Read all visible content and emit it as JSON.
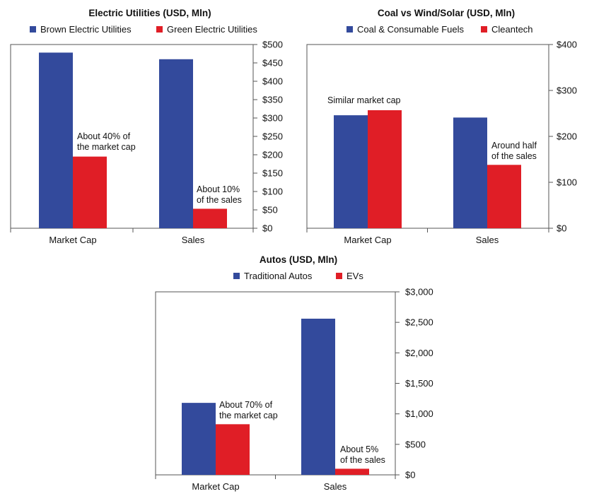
{
  "chart_data": [
    {
      "type": "bar",
      "title": "Electric Utilities (USD, Mln)",
      "categories": [
        "Market Cap",
        "Sales"
      ],
      "series": [
        {
          "name": "Brown Electric Utilities",
          "values": [
            478,
            460
          ],
          "color": "#334a9c"
        },
        {
          "name": "Green Electric Utilities",
          "values": [
            195,
            53
          ],
          "color": "#e01e26"
        }
      ],
      "ylim": [
        0,
        500
      ],
      "yticks": [
        "$0",
        "$50",
        "$100",
        "$150",
        "$200",
        "$250",
        "$300",
        "$350",
        "$400",
        "$450",
        "$500"
      ],
      "ytick_values": [
        0,
        50,
        100,
        150,
        200,
        250,
        300,
        350,
        400,
        450,
        500
      ],
      "annotations": [
        {
          "lines": [
            "About 40% of",
            "the market cap"
          ],
          "category": 0
        },
        {
          "lines": [
            "About 10%",
            "of the sales"
          ],
          "category": 1
        }
      ],
      "legend": "top"
    },
    {
      "type": "bar",
      "title": "Coal vs Wind/Solar (USD, Mln)",
      "categories": [
        "Market Cap",
        "Sales"
      ],
      "series": [
        {
          "name": "Coal & Consumable Fuels",
          "values": [
            246,
            241
          ],
          "color": "#334a9c"
        },
        {
          "name": "Cleantech",
          "values": [
            257,
            138
          ],
          "color": "#e01e26"
        }
      ],
      "ylim": [
        0,
        400
      ],
      "yticks": [
        "$0",
        "$100",
        "$200",
        "$300",
        "$400"
      ],
      "ytick_values": [
        0,
        100,
        200,
        300,
        400
      ],
      "annotations": [
        {
          "lines": [
            "Similar market cap"
          ],
          "category": 0
        },
        {
          "lines": [
            "Around half",
            "of the sales"
          ],
          "category": 1
        }
      ],
      "legend": "top"
    },
    {
      "type": "bar",
      "title": "Autos (USD, Mln)",
      "categories": [
        "Market Cap",
        "Sales"
      ],
      "series": [
        {
          "name": "Traditional Autos",
          "values": [
            1180,
            2560
          ],
          "color": "#334a9c"
        },
        {
          "name": "EVs",
          "values": [
            830,
            100
          ],
          "color": "#e01e26"
        }
      ],
      "ylim": [
        0,
        3000
      ],
      "yticks": [
        "$0",
        "$500",
        "$1,000",
        "$1,500",
        "$2,000",
        "$2,500",
        "$3,000"
      ],
      "ytick_values": [
        0,
        500,
        1000,
        1500,
        2000,
        2500,
        3000
      ],
      "annotations": [
        {
          "lines": [
            "About 70% of",
            "the market cap"
          ],
          "category": 0
        },
        {
          "lines": [
            "About 5%",
            "of the sales"
          ],
          "category": 1
        }
      ],
      "legend": "top"
    }
  ]
}
